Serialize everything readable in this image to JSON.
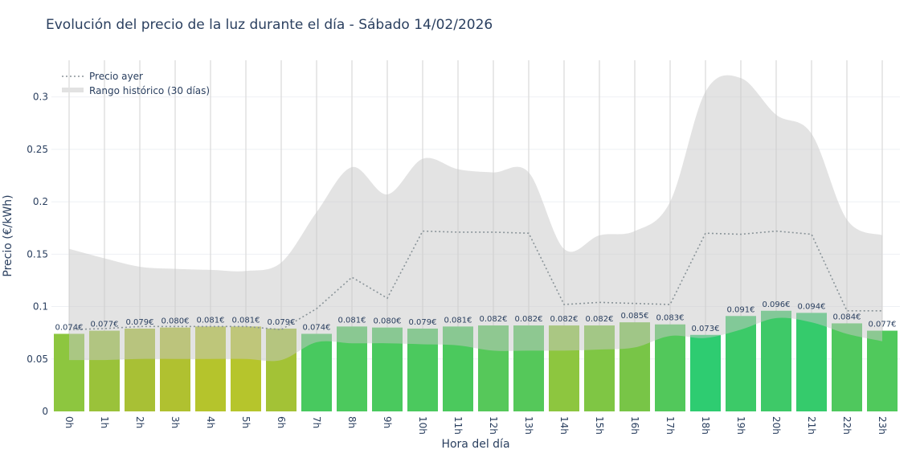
{
  "chart_data": {
    "type": "bar",
    "title": "Evolución del precio de la luz durante el día - Sábado 14/02/2026",
    "xlabel": "Hora del día",
    "ylabel": "Precio (€/kWh)",
    "ylim": [
      0,
      0.335
    ],
    "yticks": [
      0,
      0.05,
      0.1,
      0.15,
      0.2,
      0.25,
      0.3
    ],
    "ytick_labels": [
      "0",
      "0.05",
      "0.1",
      "0.15",
      "0.2",
      "0.25",
      "0.3"
    ],
    "grid": true,
    "legend_position": "top-left",
    "categories": [
      "0h",
      "1h",
      "2h",
      "3h",
      "4h",
      "5h",
      "6h",
      "7h",
      "8h",
      "9h",
      "10h",
      "11h",
      "12h",
      "13h",
      "14h",
      "15h",
      "16h",
      "17h",
      "18h",
      "19h",
      "20h",
      "21h",
      "22h",
      "23h"
    ],
    "values": [
      0.074,
      0.077,
      0.079,
      0.08,
      0.081,
      0.081,
      0.079,
      0.074,
      0.081,
      0.08,
      0.079,
      0.081,
      0.082,
      0.082,
      0.082,
      0.082,
      0.085,
      0.083,
      0.073,
      0.091,
      0.096,
      0.094,
      0.084,
      0.077
    ],
    "data_labels": [
      "0.074€",
      "0.077€",
      "0.079€",
      "0.080€",
      "0.081€",
      "0.081€",
      "0.079€",
      "0.074€",
      "0.081€",
      "0.080€",
      "0.079€",
      "0.081€",
      "0.082€",
      "0.082€",
      "0.082€",
      "0.082€",
      "0.085€",
      "0.083€",
      "0.073€",
      "0.091€",
      "0.096€",
      "0.094€",
      "0.084€",
      "0.077€"
    ],
    "bar_colors": [
      "#8dc63f",
      "#9ac23a",
      "#a8c035",
      "#b0c130",
      "#b5c42c",
      "#b6c52c",
      "#a3c236",
      "#48c95f",
      "#4cc95d",
      "#4ac95e",
      "#4bc95e",
      "#4bc95d",
      "#56c85a",
      "#55c85a",
      "#8dc63f",
      "#7fc644",
      "#78c547",
      "#52c85b",
      "#2ecc71",
      "#3cca68",
      "#3ec968",
      "#35cb6c",
      "#4fc85d",
      "#50c95c"
    ],
    "series": [
      {
        "name": "Precio ayer",
        "type": "line",
        "style": "dotted",
        "color": "#8a9499",
        "values": [
          0.078,
          0.079,
          0.081,
          0.081,
          0.081,
          0.081,
          0.078,
          0.098,
          0.128,
          0.108,
          0.172,
          0.171,
          0.171,
          0.17,
          0.102,
          0.104,
          0.103,
          0.102,
          0.17,
          0.169,
          0.172,
          0.169,
          0.096,
          0.096
        ]
      },
      {
        "name": "Rango histórico (30 días)",
        "type": "band",
        "color": "#d3d3d3",
        "upper": [
          0.155,
          0.146,
          0.138,
          0.136,
          0.135,
          0.134,
          0.142,
          0.19,
          0.233,
          0.207,
          0.241,
          0.231,
          0.228,
          0.228,
          0.155,
          0.168,
          0.172,
          0.2,
          0.305,
          0.318,
          0.283,
          0.265,
          0.183,
          0.168
        ],
        "lower": [
          0.049,
          0.049,
          0.05,
          0.05,
          0.05,
          0.05,
          0.049,
          0.066,
          0.065,
          0.065,
          0.064,
          0.063,
          0.058,
          0.058,
          0.058,
          0.059,
          0.061,
          0.072,
          0.07,
          0.078,
          0.089,
          0.085,
          0.074,
          0.067
        ]
      }
    ]
  }
}
